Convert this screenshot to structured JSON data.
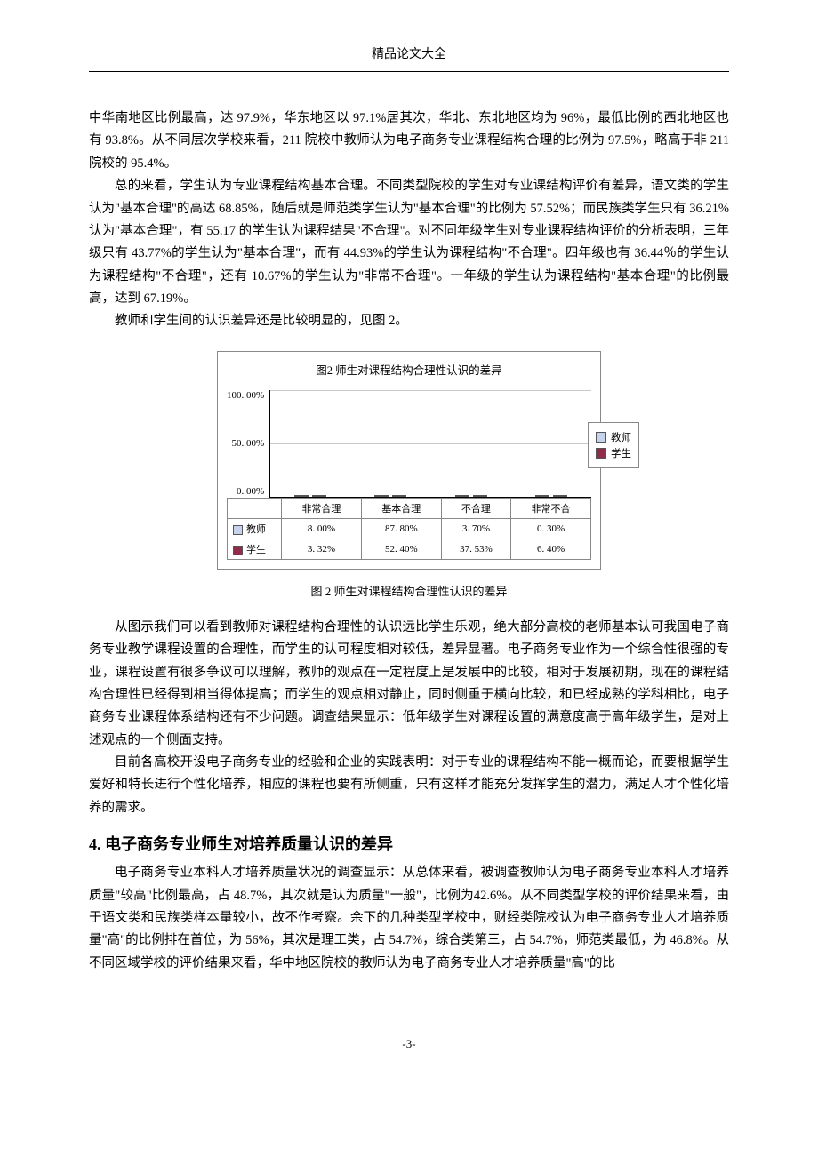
{
  "header": {
    "title": "精品论文大全"
  },
  "para1": "中华南地区比例最高，达 97.9%，华东地区以 97.1%居其次，华北、东北地区均为 96%，最低比例的西北地区也有 93.8%。从不同层次学校来看，211 院校中教师认为电子商务专业课程结构合理的比例为 97.5%，略高于非 211 院校的 95.4%。",
  "para2": "总的来看，学生认为专业课程结构基本合理。不同类型院校的学生对专业课结构评价有差异，语文类的学生认为\"基本合理\"的高达 68.85%，随后就是师范类学生认为\"基本合理\"的比例为 57.52%；而民族类学生只有 36.21%认为\"基本合理\"，有 55.17 的学生认为课程结果\"不合理\"。对不同年级学生对专业课程结构评价的分析表明，三年级只有 43.77%的学生认为\"基本合理\"，而有 44.93%的学生认为课程结构\"不合理\"。四年级也有 36.44％的学生认为课程结构\"不合理\"，还有 10.67%的学生认为\"非常不合理\"。一年级的学生认为课程结构\"基本合理\"的比例最高，达到 67.19%。",
  "para3": "教师和学生间的认识差异还是比较明显的，见图 2。",
  "chart": {
    "title": "图2  师生对课程结构合理性认识的差异",
    "caption": "图 2  师生对课程结构合理性认识的差异",
    "y_ticks": [
      "100. 00%",
      "50. 00%",
      "0. 00%"
    ],
    "ymax": 100,
    "categories": [
      "非常合理",
      "基本合理",
      "不合理",
      "非常不合"
    ],
    "series": [
      {
        "name": "教师",
        "color": "#c6d3ec",
        "values_pct": [
          8.0,
          87.8,
          3.7,
          0.3
        ],
        "values_label": [
          "8. 00%",
          "87. 80%",
          "3. 70%",
          "0. 30%"
        ]
      },
      {
        "name": "学生",
        "color": "#902b4a",
        "values_pct": [
          3.32,
          52.4,
          37.53,
          6.4
        ],
        "values_label": [
          "3. 32%",
          "52. 40%",
          "37. 53%",
          "6. 40%"
        ]
      }
    ],
    "grid_color": "#c8c8c8",
    "border_color": "#888888"
  },
  "para4": "从图示我们可以看到教师对课程结构合理性的认识远比学生乐观，绝大部分高校的老师基本认可我国电子商务专业教学课程设置的合理性，而学生的认可程度相对较低，差异显著。电子商务专业作为一个综合性很强的专业，课程设置有很多争议可以理解，教师的观点在一定程度上是发展中的比较，相对于发展初期，现在的课程结构合理性已经得到相当得体提高；而学生的观点相对静止，同时侧重于横向比较，和已经成熟的学科相比，电子商务专业课程体系结构还有不少问题。调查结果显示：低年级学生对课程设置的满意度高于高年级学生，是对上述观点的一个侧面支持。",
  "para5": "目前各高校开设电子商务专业的经验和企业的实践表明：对于专业的课程结构不能一概而论，而要根据学生爱好和特长进行个性化培养，相应的课程也要有所侧重，只有这样才能充分发挥学生的潜力，满足人才个性化培养的需求。",
  "section4_title": "4. 电子商务专业师生对培养质量认识的差异",
  "para6": "电子商务专业本科人才培养质量状况的调查显示：从总体来看，被调查教师认为电子商务专业本科人才培养质量\"较高\"比例最高，占 48.7%，其次就是认为质量\"一般\"，比例为42.6%。从不同类型学校的评价结果来看，由于语文类和民族类样本量较小，故不作考察。余下的几种类型学校中，财经类院校认为电子商务专业人才培养质量\"高\"的比例排在首位，为 56%，其次是理工类，占 54.7%，综合类第三，占 54.7%，师范类最低，为 46.8%。从不同区域学校的评价结果来看，华中地区院校的教师认为电子商务专业人才培养质量\"高\"的比",
  "footer": {
    "page": "-3-"
  }
}
